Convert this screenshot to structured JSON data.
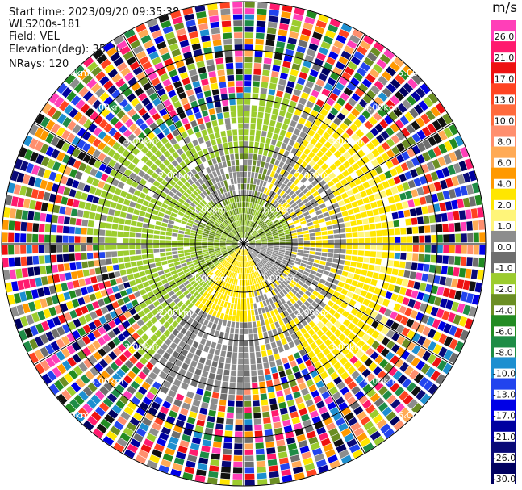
{
  "info": {
    "start_time": "Start time: 2023/09/20 09:35:38",
    "instrument": "WLS200s-181",
    "field": "Field: VEL",
    "elevation": "Elevation(deg): 35.30",
    "nrays": "NRays: 120"
  },
  "chart_data": {
    "type": "heatmap",
    "title": "",
    "colorbar": {
      "unit": "m/s",
      "ticks": [
        "26.0",
        "21.0",
        "17.0",
        "13.0",
        "10.0",
        "8.0",
        "6.0",
        "4.0",
        "2.0",
        "1.0",
        "0.0",
        "-1.0",
        "-2.0",
        "-4.0",
        "-6.0",
        "-8.0",
        "-10.0",
        "-13.0",
        "-17.0",
        "-21.0",
        "-26.0",
        "-30.0"
      ],
      "colors": [
        "#ff3fb8",
        "#ff1a6e",
        "#ee1111",
        "#ff4422",
        "#ff6a3c",
        "#ff8f6e",
        "#ffaa55",
        "#ff9900",
        "#ffe600",
        "#fff57a",
        "#8d8d8d",
        "#6e6e6e",
        "#9ccc2e",
        "#6b8e23",
        "#228b22",
        "#1e8c46",
        "#1d8fd0",
        "#2244ee",
        "#0000e6",
        "#0000a0",
        "#0a0a78",
        "#000060"
      ]
    },
    "range_rings_km": [
      1,
      2,
      3,
      4,
      5
    ],
    "ring_labels": [
      "1.00km",
      "2.00km",
      "3.00km",
      "4.00km",
      "5.00km"
    ],
    "max_range_km": 5.0,
    "nrays": 120
  }
}
